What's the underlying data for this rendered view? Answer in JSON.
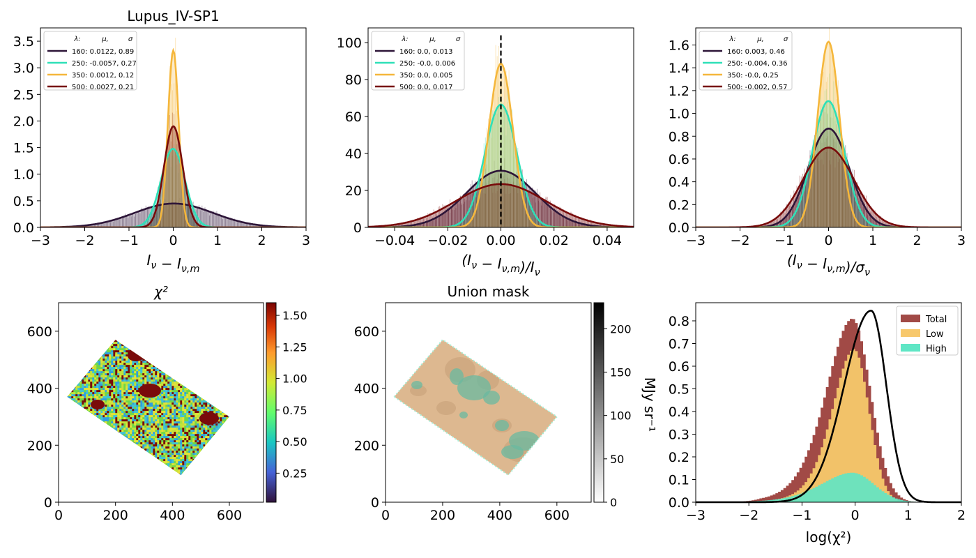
{
  "figure": {
    "colors": {
      "c160": "#2d1538",
      "c250": "#2ee0b8",
      "c350": "#f5b73c",
      "c500": "#780b0b",
      "total": "#a14a46",
      "low": "#f7c86c",
      "high": "#5fe6c5",
      "mask": "#ddb890"
    }
  },
  "chart_data": [
    {
      "type": "area",
      "title": "Lupus_IV-SP1",
      "xlabel": "I_ν − I_ν,m",
      "xlim": [
        -3,
        3
      ],
      "ylim": [
        0,
        3.75
      ],
      "xticks": [
        -3,
        -2,
        -1,
        0,
        1,
        2,
        3
      ],
      "yticks": [
        0.0,
        0.5,
        1.0,
        1.5,
        2.0,
        2.5,
        3.0,
        3.5
      ],
      "legend": {
        "header": [
          "λ:",
          "μ,",
          "σ"
        ],
        "placement": "top-left"
      },
      "series": [
        {
          "name": "160: 0.0122,  0.89",
          "mu": 0.0122,
          "sigma": 0.89
        },
        {
          "name": "250: -0.0057,  0.27",
          "mu": -0.0057,
          "sigma": 0.27
        },
        {
          "name": "350: 0.0012,  0.12",
          "mu": 0.0012,
          "sigma": 0.12
        },
        {
          "name": "500: 0.0027,  0.21",
          "mu": 0.0027,
          "sigma": 0.21
        }
      ]
    },
    {
      "type": "area",
      "title": "",
      "xlabel": "(I_ν − I_ν,m)/I_ν",
      "xlim": [
        -0.05,
        0.05
      ],
      "ylim": [
        0,
        108
      ],
      "xticks": [
        -0.04,
        -0.02,
        0.0,
        0.02,
        0.04
      ],
      "yticks": [
        0,
        20,
        40,
        60,
        80,
        100
      ],
      "vline": 0.0,
      "legend": {
        "header": [
          "λ:",
          "μ,",
          "σ"
        ],
        "placement": "top-left"
      },
      "series": [
        {
          "name": "160: 0.0,  0.013",
          "mu": 0.0,
          "sigma": 0.013
        },
        {
          "name": "250: -0.0,  0.006",
          "mu": 0.0,
          "sigma": 0.006
        },
        {
          "name": "350: 0.0,  0.005",
          "mu": 0.0,
          "sigma": 0.0045
        },
        {
          "name": "500: 0.0,  0.017",
          "mu": 0.0,
          "sigma": 0.017
        }
      ]
    },
    {
      "type": "area",
      "title": "",
      "xlabel": "(I_ν − I_ν,m)/σ_ν",
      "xlim": [
        -3,
        3
      ],
      "ylim": [
        0,
        1.75
      ],
      "xticks": [
        -3,
        -2,
        -1,
        0,
        1,
        2,
        3
      ],
      "yticks": [
        0.0,
        0.2,
        0.4,
        0.6,
        0.8,
        1.0,
        1.2,
        1.4,
        1.6
      ],
      "legend": {
        "header": [
          "λ:",
          "μ,",
          "σ"
        ],
        "placement": "top-left"
      },
      "series": [
        {
          "name": "160: 0.003,  0.46",
          "mu": 0.003,
          "sigma": 0.46
        },
        {
          "name": "250: -0.004,  0.36",
          "mu": -0.004,
          "sigma": 0.36
        },
        {
          "name": "350: -0.0,  0.25",
          "mu": 0.0,
          "sigma": 0.245
        },
        {
          "name": "500: -0.002,  0.57",
          "mu": -0.002,
          "sigma": 0.57
        }
      ]
    },
    {
      "type": "heatmap",
      "title": "χ²",
      "xlim": [
        0,
        720
      ],
      "ylim": [
        0,
        700
      ],
      "xticks": [
        0,
        200,
        400,
        600
      ],
      "yticks": [
        0,
        200,
        400,
        600
      ],
      "region_corners": [
        [
          30,
          370
        ],
        [
          200,
          570
        ],
        [
          600,
          300
        ],
        [
          430,
          95
        ]
      ],
      "colorbar": {
        "min": 0.02,
        "max": 1.6,
        "ticks": [
          0.25,
          0.5,
          0.75,
          1.0,
          1.25,
          1.5
        ],
        "tick_labels": [
          "0.25",
          "0.50",
          "0.75",
          "1.00",
          "1.25",
          "1.50"
        ]
      }
    },
    {
      "type": "heatmap",
      "title": "Union mask",
      "xlim": [
        0,
        720
      ],
      "ylim": [
        0,
        700
      ],
      "xticks": [
        0,
        200,
        400,
        600
      ],
      "yticks": [
        0,
        200,
        400,
        600
      ],
      "region_corners": [
        [
          30,
          370
        ],
        [
          200,
          570
        ],
        [
          600,
          300
        ],
        [
          430,
          95
        ]
      ],
      "colorbar": {
        "min": 0,
        "max": 230,
        "ticks": [
          0,
          50,
          100,
          150,
          200
        ],
        "tick_labels": [
          "0",
          "50",
          "100",
          "150",
          "200"
        ],
        "label": "MJy sr⁻¹"
      }
    },
    {
      "type": "bar",
      "title": "",
      "xlabel": "log(χ²)",
      "xlim": [
        -3,
        2
      ],
      "ylim": [
        0,
        0.88
      ],
      "xticks": [
        -3,
        -2,
        -1,
        0,
        1,
        2
      ],
      "yticks": [
        0.0,
        0.1,
        0.2,
        0.3,
        0.4,
        0.5,
        0.6,
        0.7,
        0.8
      ],
      "legend": {
        "placement": "top-right"
      },
      "series": [
        {
          "name": "Total",
          "mu": -0.05,
          "sigma": 0.46,
          "peak": 0.81
        },
        {
          "name": "Low",
          "mu": -0.02,
          "sigma": 0.38,
          "peak": 0.675
        },
        {
          "name": "High",
          "mu": -0.05,
          "sigma": 0.55,
          "peak": 0.13
        }
      ],
      "curve": {
        "mu": 0.3,
        "sigma": 0.33,
        "peak": 0.845
      }
    }
  ]
}
